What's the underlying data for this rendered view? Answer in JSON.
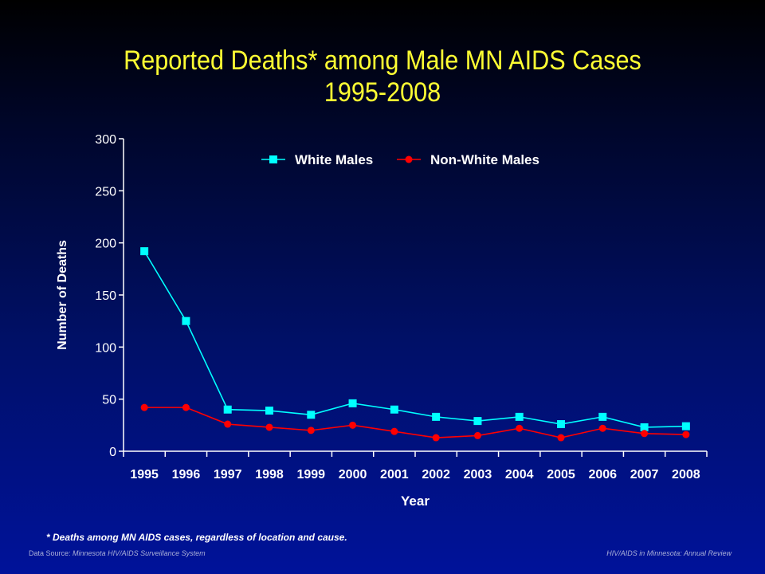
{
  "slide": {
    "title_line1": "Reported Deaths* among Male MN AIDS Cases",
    "title_line2": "1995-2008",
    "footnote": "* Deaths among MN AIDS cases, regardless of location and cause.",
    "source_prefix": "Data Source:",
    "source_name": "Minnesota HIV/AIDS Surveillance System",
    "review": "HIV/AIDS in Minnesota: Annual Review"
  },
  "colors": {
    "title": "#ffff33",
    "white_males": "#00ffff",
    "non_white_males": "#ff0000",
    "axis": "#ffffff"
  },
  "chart_data": {
    "type": "line",
    "title": "Reported Deaths* among Male MN AIDS Cases 1995-2008",
    "xlabel": "Year",
    "ylabel": "Number of Deaths",
    "categories": [
      "1995",
      "1996",
      "1997",
      "1998",
      "1999",
      "2000",
      "2001",
      "2002",
      "2003",
      "2004",
      "2005",
      "2006",
      "2007",
      "2008"
    ],
    "yticks": [
      0,
      50,
      100,
      150,
      200,
      250,
      300
    ],
    "ylim": [
      0,
      300
    ],
    "grid": false,
    "legend": "top-center",
    "series": [
      {
        "name": "White Males",
        "marker": "square",
        "color": "#00ffff",
        "values": [
          192,
          125,
          40,
          39,
          35,
          46,
          40,
          33,
          29,
          33,
          26,
          33,
          23,
          24
        ]
      },
      {
        "name": "Non-White Males",
        "marker": "circle",
        "color": "#ff0000",
        "values": [
          42,
          42,
          26,
          23,
          20,
          25,
          19,
          13,
          15,
          22,
          13,
          22,
          17,
          16
        ]
      }
    ]
  }
}
